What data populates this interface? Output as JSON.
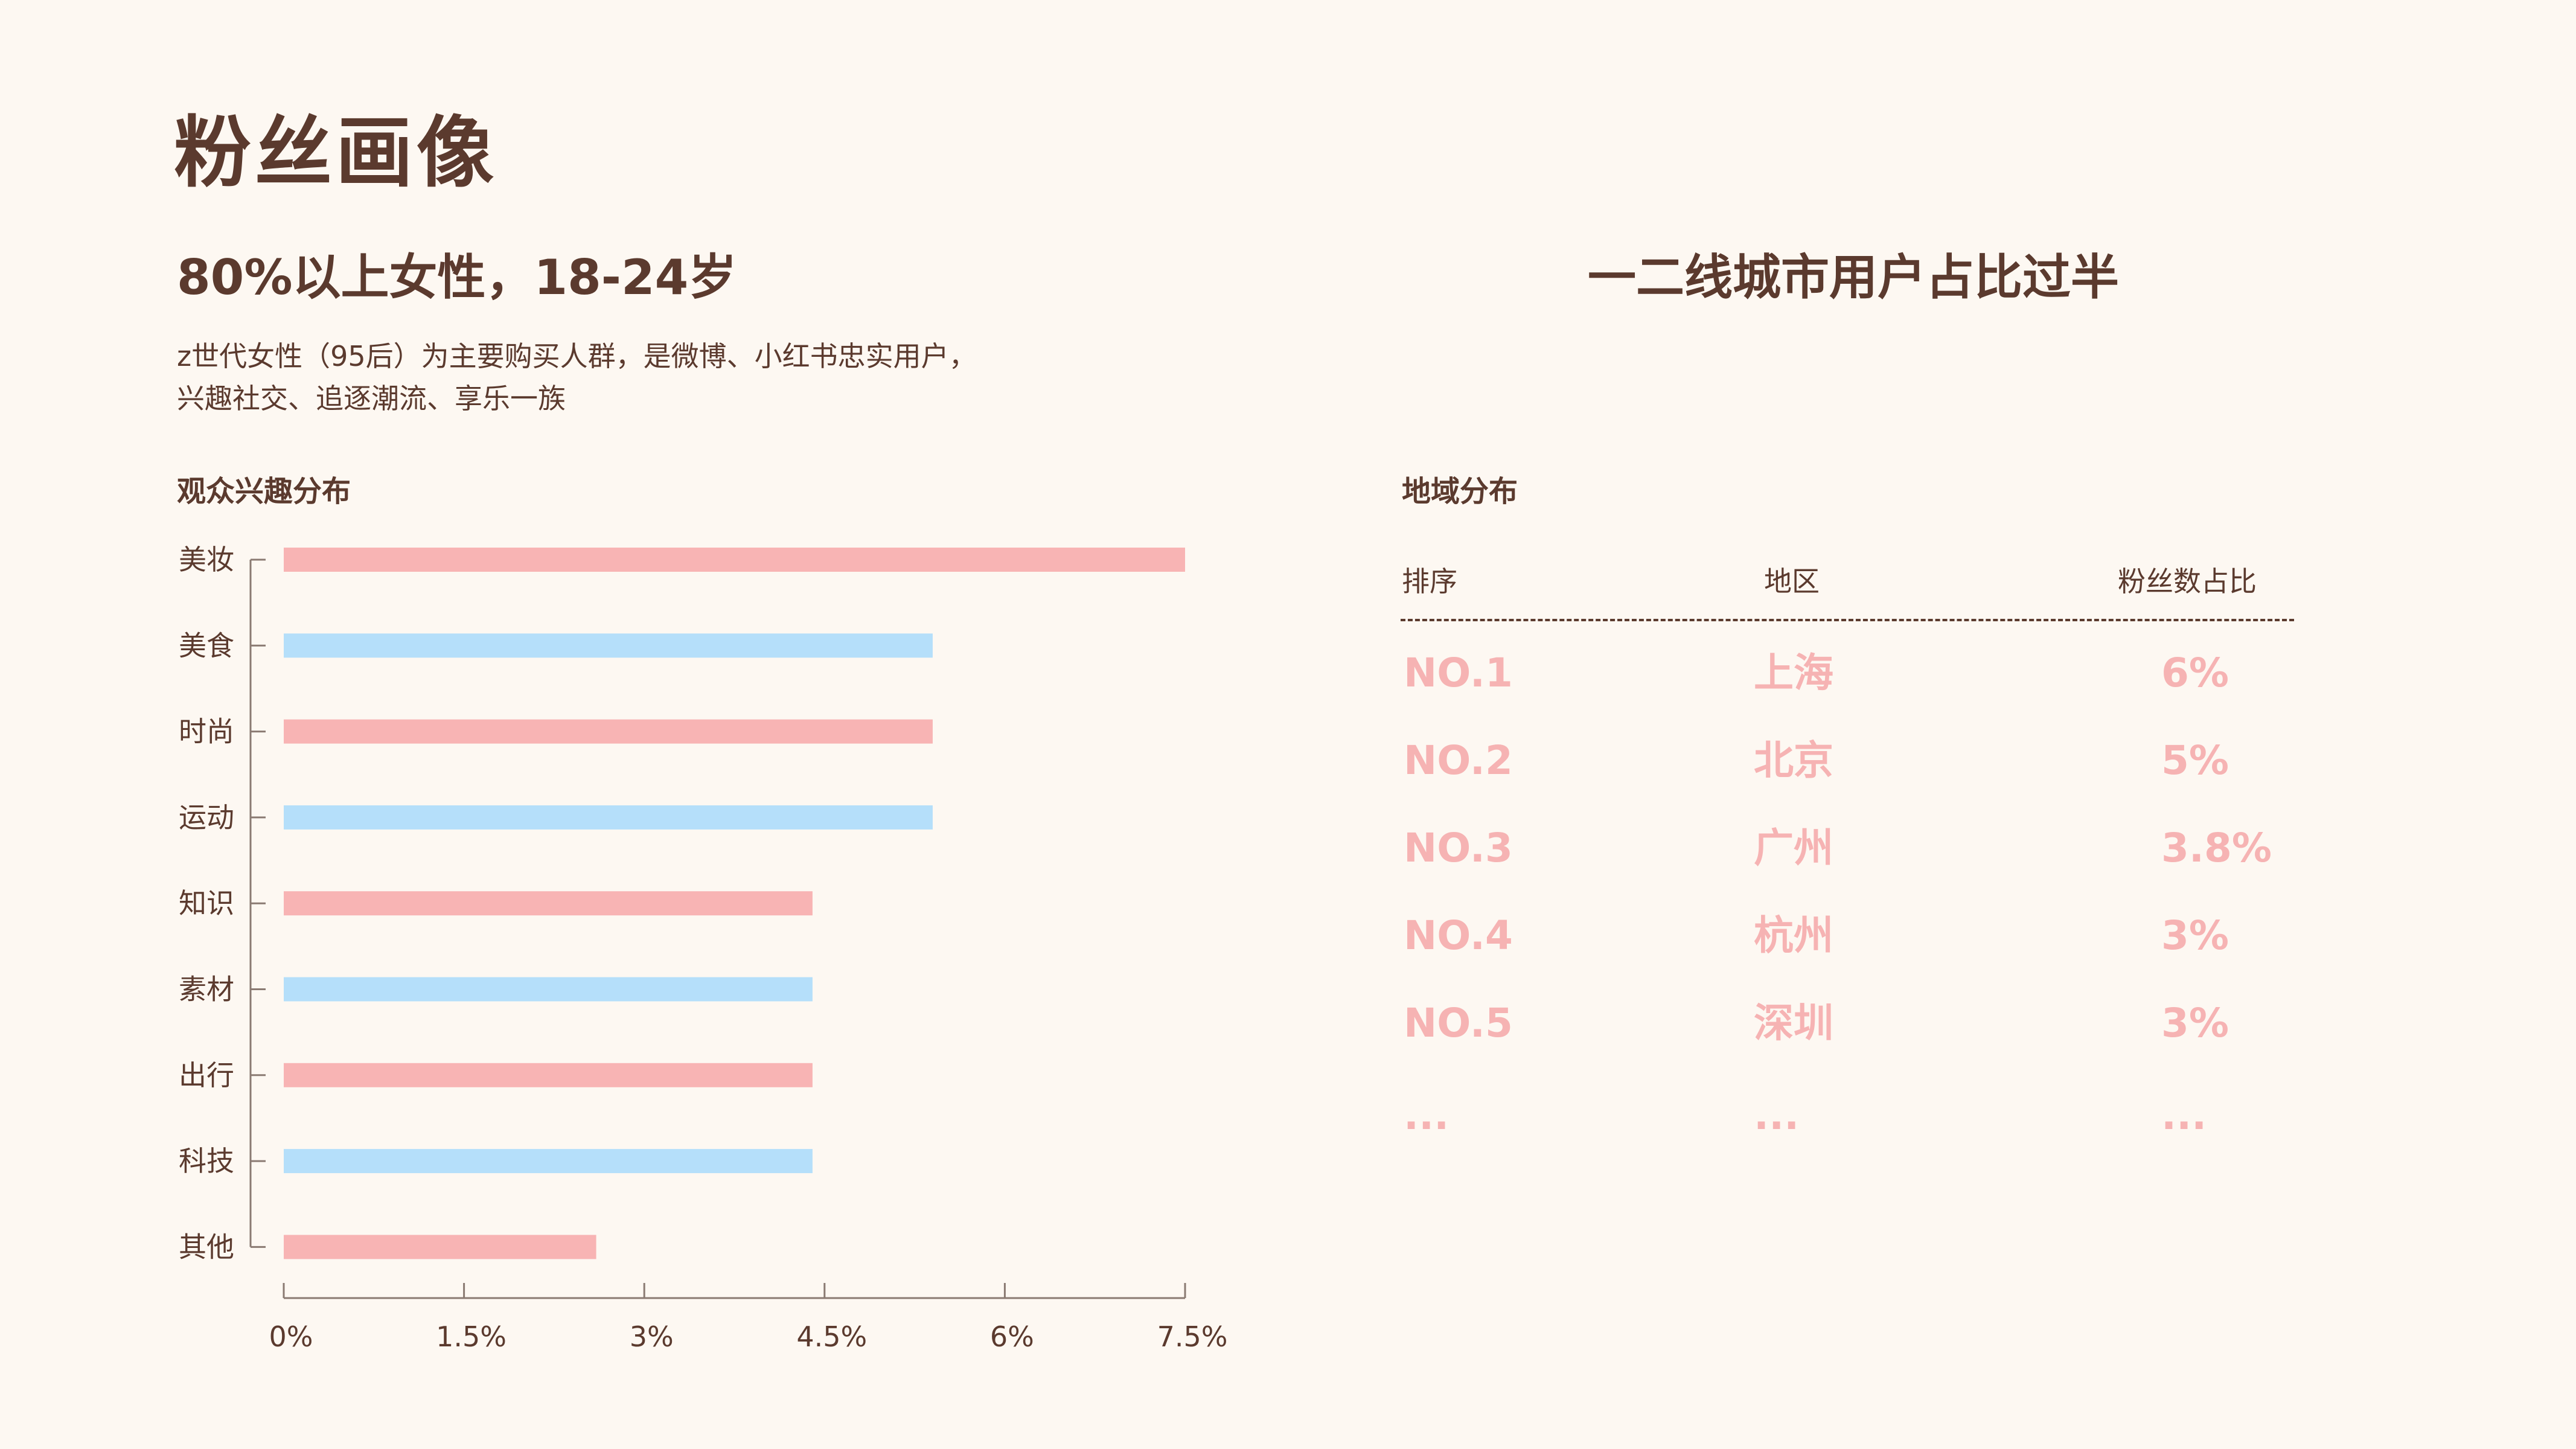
{
  "title": "粉丝画像",
  "subtitle": "80%以上女性，18-24岁",
  "description": [
    "z世代女性（95后）为主要购买人群，是微博、小红书忠实用户，",
    "兴趣社交、追逐潮流、享乐一族"
  ],
  "left_section_label": "观众兴趣分布",
  "right_heading": "一二线城市用户占比过半",
  "right_section_label": "地域分布",
  "table": {
    "headers": [
      "排序",
      "地区",
      "粉丝数占比"
    ],
    "rows": [
      {
        "rank": "NO.1",
        "region": "上海",
        "share": "6%"
      },
      {
        "rank": "NO.2",
        "region": "北京",
        "share": "5%"
      },
      {
        "rank": "NO.3",
        "region": "广州",
        "share": "3.8%"
      },
      {
        "rank": "NO.4",
        "region": "杭州",
        "share": "3%"
      },
      {
        "rank": "NO.5",
        "region": "深圳",
        "share": "3%"
      },
      {
        "rank": "...",
        "region": "...",
        "share": "..."
      }
    ]
  },
  "colors": {
    "pink": "#f8b4b4",
    "blue": "#b5dffa",
    "text": "#5b3a2e",
    "axis": "#8a7a72"
  },
  "chart_data": {
    "type": "bar",
    "orientation": "horizontal",
    "categories": [
      "美妆",
      "美食",
      "时尚",
      "运动",
      "知识",
      "素材",
      "出行",
      "科技",
      "其他"
    ],
    "values": [
      7.5,
      5.4,
      5.4,
      5.4,
      4.4,
      4.4,
      4.4,
      4.4,
      2.6
    ],
    "bar_colors": [
      "pink",
      "blue",
      "pink",
      "blue",
      "pink",
      "blue",
      "pink",
      "blue",
      "pink"
    ],
    "xticks": [
      "0%",
      "1.5%",
      "3%",
      "4.5%",
      "6%",
      "7.5%"
    ],
    "xtick_values": [
      0,
      1.5,
      3,
      4.5,
      6,
      7.5
    ],
    "xlim": [
      0,
      7.5
    ],
    "grid": false
  }
}
